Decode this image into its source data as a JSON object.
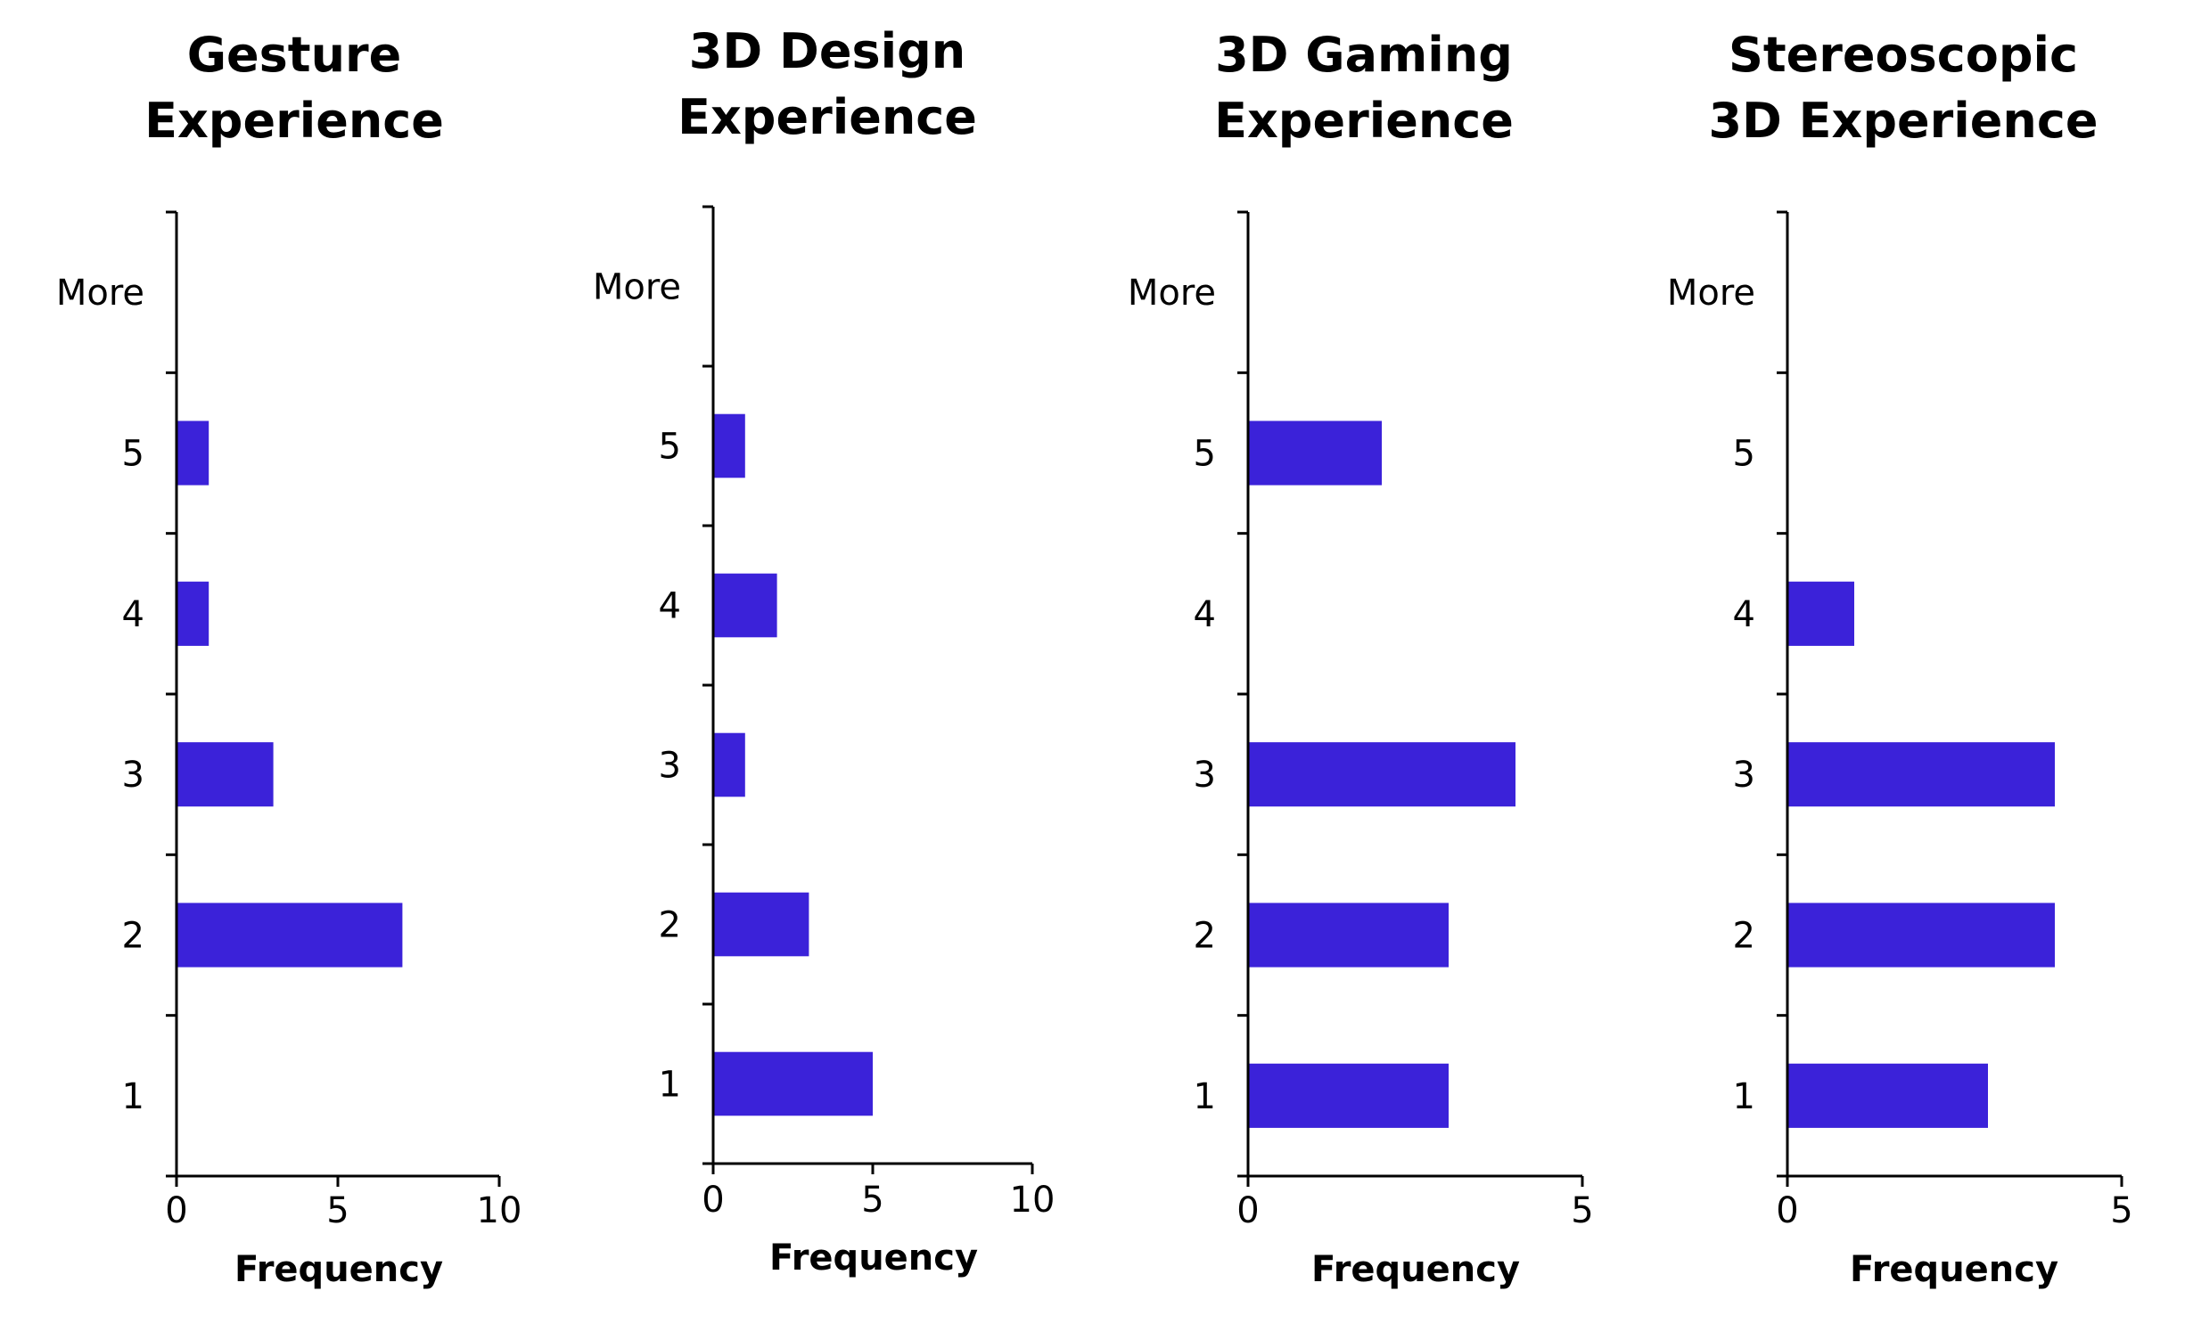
{
  "chart_data": [
    {
      "type": "bar",
      "orientation": "horizontal",
      "title": [
        "Gesture",
        "Experience"
      ],
      "categories": [
        "1",
        "2",
        "3",
        "4",
        "5",
        "More"
      ],
      "values": [
        0,
        7,
        3,
        1,
        1,
        0
      ],
      "xlabel": "Frequency",
      "xlim": [
        0,
        10
      ],
      "xticks": [
        0,
        5,
        10
      ],
      "grid": false,
      "color": "#3b22d9"
    },
    {
      "type": "bar",
      "orientation": "horizontal",
      "title": [
        "3D Design",
        "Experience"
      ],
      "categories": [
        "1",
        "2",
        "3",
        "4",
        "5",
        "More"
      ],
      "values": [
        5,
        3,
        1,
        2,
        1,
        0
      ],
      "xlabel": "Frequency",
      "xlim": [
        0,
        10
      ],
      "xticks": [
        0,
        5,
        10
      ],
      "grid": false,
      "color": "#3b22d9"
    },
    {
      "type": "bar",
      "orientation": "horizontal",
      "title": [
        "3D Gaming",
        "Experience"
      ],
      "categories": [
        "1",
        "2",
        "3",
        "4",
        "5",
        "More"
      ],
      "values": [
        3,
        3,
        4,
        0,
        2,
        0
      ],
      "xlabel": "Frequency",
      "xlim": [
        0,
        5
      ],
      "xticks": [
        0,
        5
      ],
      "grid": false,
      "color": "#3b22d9"
    },
    {
      "type": "bar",
      "orientation": "horizontal",
      "title": [
        "Stereoscopic",
        "3D Experience"
      ],
      "categories": [
        "1",
        "2",
        "3",
        "4",
        "5",
        "More"
      ],
      "values": [
        3,
        4,
        4,
        1,
        0,
        0
      ],
      "xlabel": "Frequency",
      "xlim": [
        0,
        5
      ],
      "xticks": [
        0,
        5
      ],
      "grid": false,
      "color": "#3b22d9"
    }
  ]
}
